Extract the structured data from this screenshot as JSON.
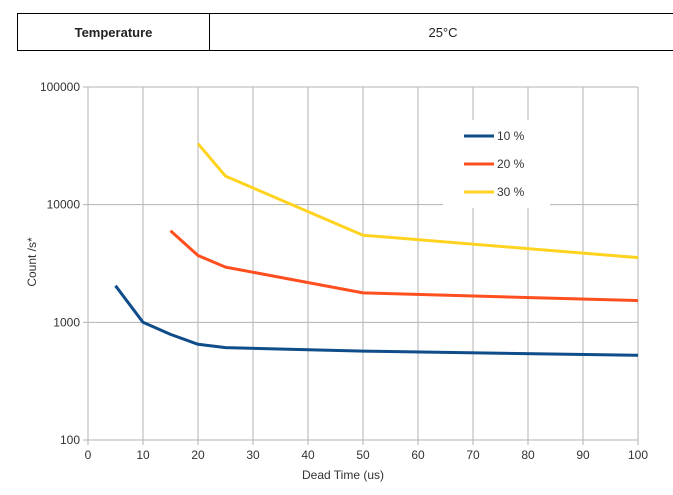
{
  "table": {
    "key": "Temperature",
    "value": "25°C"
  },
  "chart_data": {
    "type": "line",
    "title": "",
    "xlabel": "Dead Time (us)",
    "ylabel": "Count /s*",
    "xlim": [
      0,
      100
    ],
    "ylim": [
      100,
      100000
    ],
    "yscale": "log",
    "grid": true,
    "legend_position": "top-right",
    "x_ticks": [
      "0",
      "10",
      "20",
      "30",
      "40",
      "50",
      "60",
      "70",
      "80",
      "90",
      "100"
    ],
    "y_ticks": [
      "100",
      "1000",
      "10000",
      "100000"
    ],
    "series": [
      {
        "name": "10 %",
        "color": "#0f4c8a",
        "x": [
          5,
          10,
          15,
          20,
          25,
          50,
          100
        ],
        "y": [
          2050,
          1000,
          790,
          650,
          610,
          570,
          525
        ]
      },
      {
        "name": "20 %",
        "color": "#ff4f1f",
        "x": [
          15,
          20,
          25,
          50,
          100
        ],
        "y": [
          6000,
          3700,
          2950,
          1780,
          1530
        ]
      },
      {
        "name": "30 %",
        "color": "#ffd320",
        "x": [
          20,
          25,
          50,
          100
        ],
        "y": [
          33000,
          17500,
          5500,
          3550
        ]
      }
    ]
  }
}
